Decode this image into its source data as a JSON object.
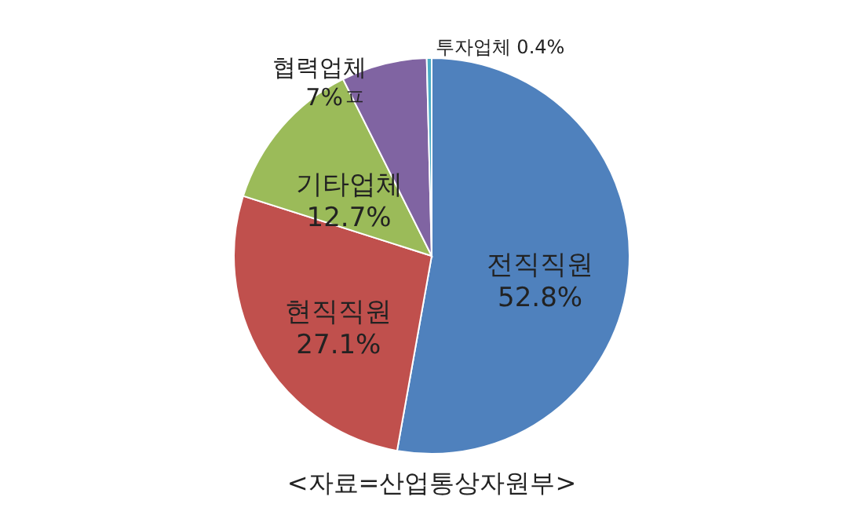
{
  "chart_data": {
    "type": "pie",
    "categories": [
      "전직직원",
      "현직직원",
      "기타업체",
      "협력업체",
      "투자업체"
    ],
    "values": [
      52.8,
      27.1,
      12.7,
      7,
      0.4
    ],
    "colors": [
      "#4f81bd",
      "#c0504d",
      "#9bbb59",
      "#8064a2",
      "#4bacc6"
    ],
    "value_labels": [
      "52.8%",
      "27.1%",
      "12.7%",
      "7%ㅍ",
      "0.4%"
    ],
    "annotations": [
      "<자료=산업통상자원부>"
    ]
  }
}
